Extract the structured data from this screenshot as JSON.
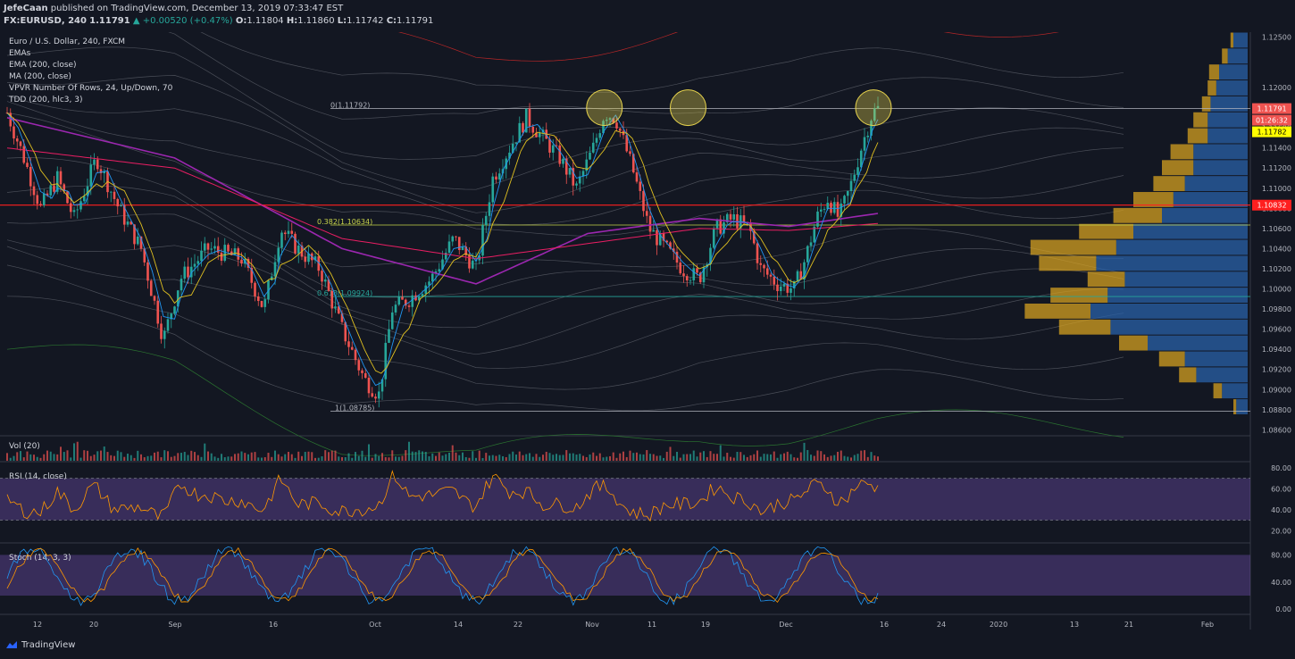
{
  "header": {
    "publisher": "JefeCaan",
    "published_text": "published on TradingView.com, December 13, 2019 07:33:47 EST",
    "symbol": "FX:EURUSD, 240",
    "last": "1.11791",
    "change": "▲ +0.00520 (+0.47%)",
    "o_label": "O:",
    "o_val": "1.11804",
    "h_label": "H:",
    "h_val": "1.11860",
    "l_label": "L:",
    "l_val": "1.11742",
    "c_label": "C:",
    "c_val": "1.11791"
  },
  "legend": {
    "title": "Euro / U.S. Dollar, 240, FXCM",
    "items": [
      "EMAs",
      "EMA (200, close)",
      "MA (200, close)",
      "VPVR Number Of Rows, 24, Up/Down, 70",
      "TDD (200, hlc3, 3)"
    ]
  },
  "panes": {
    "vol_label": "Vol (20)",
    "rsi_label": "RSI (14, close)",
    "stoch_label": "Stoch (14, 3, 3)"
  },
  "footer": {
    "brand": "TradingView"
  },
  "colors": {
    "bg": "#131722",
    "up": "#26a69a",
    "down": "#ef5350",
    "ema": "#9c27b0",
    "ma": "#e91e63",
    "band": "#b2b5be",
    "band_upper": "#c62828",
    "band_lower": "#2e7d32",
    "vp_up": "#d4a020",
    "vp_down": "#2962a8",
    "highlight": "#e8d44d"
  },
  "chart_data": {
    "type": "candlestick",
    "symbol": "EURUSD",
    "timeframe": "240",
    "ylim": [
      1.0855,
      1.1255
    ],
    "price_ticks": [
      "1.12500",
      "1.12000",
      "1.11800",
      "1.11600",
      "1.11400",
      "1.11200",
      "1.11000",
      "1.10800",
      "1.10600",
      "1.10400",
      "1.10200",
      "1.10000",
      "1.09800",
      "1.09600",
      "1.09400",
      "1.09200",
      "1.09000",
      "1.08800",
      "1.08600"
    ],
    "x_ticks": [
      "12",
      "20",
      "Sep",
      "16",
      "Oct",
      "14",
      "22",
      "Nov",
      "11",
      "19",
      "Dec",
      "16",
      "24",
      "2020",
      "13",
      "21",
      "Feb"
    ],
    "price_path": [
      [
        0,
        1.1175
      ],
      [
        15,
        1.113
      ],
      [
        30,
        1.108
      ],
      [
        45,
        1.111
      ],
      [
        60,
        1.107
      ],
      [
        80,
        1.113
      ],
      [
        100,
        1.108
      ],
      [
        120,
        1.104
      ],
      [
        140,
        1.095
      ],
      [
        155,
        1.101
      ],
      [
        180,
        1.104
      ],
      [
        210,
        1.103
      ],
      [
        230,
        1.098
      ],
      [
        245,
        1.106
      ],
      [
        260,
        1.104
      ],
      [
        280,
        1.102
      ],
      [
        300,
        1.096
      ],
      [
        320,
        1.091
      ],
      [
        333,
        1.0895
      ],
      [
        345,
        1.098
      ],
      [
        360,
        1.099
      ],
      [
        380,
        1.101
      ],
      [
        400,
        1.105
      ],
      [
        420,
        1.102
      ],
      [
        435,
        1.111
      ],
      [
        450,
        1.114
      ],
      [
        465,
        1.117
      ],
      [
        480,
        1.115
      ],
      [
        495,
        1.113
      ],
      [
        510,
        1.11
      ],
      [
        525,
        1.114
      ],
      [
        535,
        1.1175
      ],
      [
        545,
        1.117
      ],
      [
        560,
        1.112
      ],
      [
        575,
        1.106
      ],
      [
        590,
        1.104
      ],
      [
        605,
        1.102
      ],
      [
        620,
        1.101
      ],
      [
        635,
        1.106
      ],
      [
        650,
        1.107
      ],
      [
        665,
        1.106
      ],
      [
        675,
        1.102
      ],
      [
        690,
        1.1005
      ],
      [
        705,
        1.1
      ],
      [
        715,
        1.103
      ],
      [
        725,
        1.107
      ],
      [
        735,
        1.109
      ],
      [
        745,
        1.107
      ],
      [
        755,
        1.11
      ],
      [
        765,
        1.114
      ],
      [
        775,
        1.1175
      ],
      [
        780,
        1.1179
      ]
    ],
    "ema_200": [
      [
        0,
        1.117
      ],
      [
        150,
        1.113
      ],
      [
        300,
        1.104
      ],
      [
        420,
        1.1005
      ],
      [
        520,
        1.1055
      ],
      [
        620,
        1.107
      ],
      [
        700,
        1.1062
      ],
      [
        780,
        1.1075
      ]
    ],
    "ma_200": [
      [
        0,
        1.114
      ],
      [
        150,
        1.112
      ],
      [
        300,
        1.105
      ],
      [
        420,
        1.103
      ],
      [
        520,
        1.1045
      ],
      [
        620,
        1.106
      ],
      [
        700,
        1.1058
      ],
      [
        780,
        1.1065
      ]
    ],
    "horizontal_lines": [
      {
        "label": "0(1.11792)",
        "value": 1.11792,
        "color": "#b2b5be"
      },
      {
        "label": "0.382(1.10634)",
        "value": 1.10634,
        "color": "#c8d44a"
      },
      {
        "label": "0.618(1.09924)",
        "value": 1.09924,
        "color": "#26a69a"
      },
      {
        "label": "1(1.08785)",
        "value": 1.08785,
        "color": "#b2b5be"
      },
      {
        "label": "",
        "value": 1.10832,
        "color": "#ff1f1f"
      }
    ],
    "price_labels": [
      {
        "text": "1.11791",
        "value": 1.11791,
        "bg": "#ef5350",
        "fg": "#ffffff"
      },
      {
        "text": "01:26:32",
        "value": 1.1165,
        "bg": "#ef5350",
        "fg": "#ffffff"
      },
      {
        "text": "1.11782",
        "value": 1.11782,
        "bg": "#ffff00",
        "fg": "#000000"
      },
      {
        "text": "1.10832",
        "value": 1.10832,
        "bg": "#ff1f1f",
        "fg": "#ffffff"
      }
    ],
    "highlight_circles": [
      {
        "x_index": 535,
        "value": 1.118
      },
      {
        "x_index": 610,
        "value": 1.118
      },
      {
        "x_index": 776,
        "value": 1.118
      }
    ],
    "volume_profile_rows": [
      {
        "up": 2,
        "down": 10
      },
      {
        "up": 4,
        "down": 14
      },
      {
        "up": 7,
        "down": 20
      },
      {
        "up": 6,
        "down": 22
      },
      {
        "up": 6,
        "down": 26
      },
      {
        "up": 10,
        "down": 28
      },
      {
        "up": 14,
        "down": 28
      },
      {
        "up": 16,
        "down": 38
      },
      {
        "up": 22,
        "down": 38
      },
      {
        "up": 22,
        "down": 44
      },
      {
        "up": 28,
        "down": 52
      },
      {
        "up": 34,
        "down": 60
      },
      {
        "up": 38,
        "down": 80
      },
      {
        "up": 60,
        "down": 92
      },
      {
        "up": 40,
        "down": 106
      },
      {
        "up": 26,
        "down": 86
      },
      {
        "up": 40,
        "down": 98
      },
      {
        "up": 46,
        "down": 110
      },
      {
        "up": 36,
        "down": 96
      },
      {
        "up": 20,
        "down": 70
      },
      {
        "up": 18,
        "down": 44
      },
      {
        "up": 12,
        "down": 36
      },
      {
        "up": 6,
        "down": 18
      },
      {
        "up": 2,
        "down": 8
      }
    ],
    "rsi": {
      "ylim": [
        10,
        85
      ],
      "ticks": [
        "80.00",
        "60.00",
        "40.00",
        "20.00"
      ],
      "band": [
        30,
        70
      ]
    },
    "stoch": {
      "ylim": [
        -5,
        95
      ],
      "ticks": [
        "80.00",
        "40.00",
        "0.00"
      ],
      "band": [
        20,
        80
      ]
    }
  }
}
